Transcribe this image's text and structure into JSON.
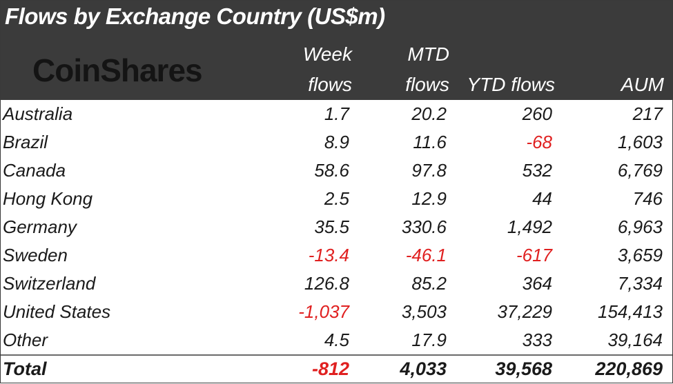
{
  "title": "Flows by Exchange Country (US$m)",
  "logo_text": "CoinShares",
  "columns": {
    "week": [
      "Week",
      "flows"
    ],
    "mtd": [
      "MTD",
      "flows"
    ],
    "ytd": "YTD flows",
    "aum": "AUM"
  },
  "colors": {
    "header_bg": "#3b3b3b",
    "negative": "#e02020",
    "text": "#1a1a1a"
  },
  "chart_data": {
    "type": "table",
    "title": "Flows by Exchange Country (US$m)",
    "columns": [
      "Week flows",
      "MTD flows",
      "YTD flows",
      "AUM"
    ],
    "rows": [
      {
        "name": "Australia",
        "week": "1.7",
        "mtd": "20.2",
        "ytd": "260",
        "aum": "217"
      },
      {
        "name": "Brazil",
        "week": "8.9",
        "mtd": "11.6",
        "ytd": "-68",
        "aum": "1,603"
      },
      {
        "name": "Canada",
        "week": "58.6",
        "mtd": "97.8",
        "ytd": "532",
        "aum": "6,769"
      },
      {
        "name": "Hong Kong",
        "week": "2.5",
        "mtd": "12.9",
        "ytd": "44",
        "aum": "746"
      },
      {
        "name": "Germany",
        "week": "35.5",
        "mtd": "330.6",
        "ytd": "1,492",
        "aum": "6,963"
      },
      {
        "name": "Sweden",
        "week": "-13.4",
        "mtd": "-46.1",
        "ytd": "-617",
        "aum": "3,659"
      },
      {
        "name": "Switzerland",
        "week": "126.8",
        "mtd": "85.2",
        "ytd": "364",
        "aum": "7,334"
      },
      {
        "name": "United States",
        "week": "-1,037",
        "mtd": "3,503",
        "ytd": "37,229",
        "aum": "154,413"
      },
      {
        "name": "Other",
        "week": "4.5",
        "mtd": "17.9",
        "ytd": "333",
        "aum": "39,164"
      }
    ],
    "total": {
      "name": "Total",
      "week": "-812",
      "mtd": "4,033",
      "ytd": "39,568",
      "aum": "220,869"
    }
  }
}
